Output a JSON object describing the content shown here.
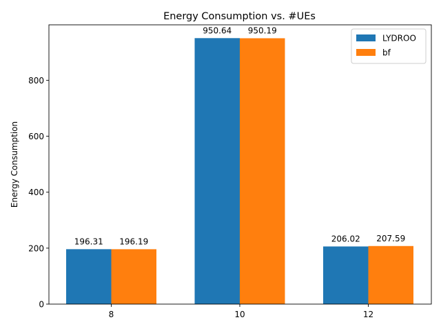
{
  "chart_data": {
    "type": "bar",
    "title": "Energy Consumption vs. #UEs",
    "xlabel": "",
    "ylabel": "Energy Consumption",
    "categories": [
      "8",
      "10",
      "12"
    ],
    "series": [
      {
        "name": "LYDROO",
        "values": [
          196.31,
          950.64,
          206.02
        ],
        "labels": [
          "196.31",
          "950.64",
          "206.02"
        ],
        "color": "#1f77b4"
      },
      {
        "name": "bf",
        "values": [
          196.19,
          950.19,
          207.59
        ],
        "labels": [
          "196.19",
          "950.19",
          "207.59"
        ],
        "color": "#ff7f0e"
      }
    ],
    "ylim": [
      0,
      998.17
    ],
    "yticks": [
      "0",
      "200",
      "400",
      "600",
      "800"
    ],
    "grid": false,
    "legend_position": "top-right"
  }
}
